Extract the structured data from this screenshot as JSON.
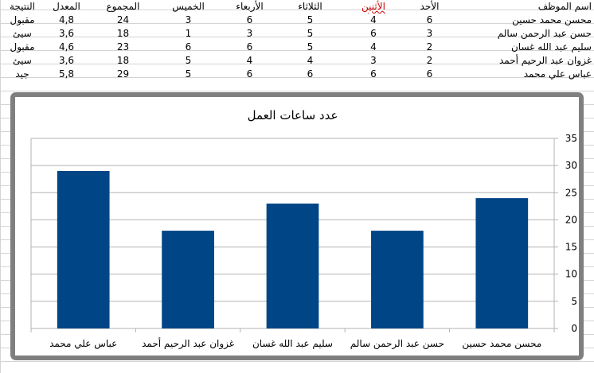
{
  "sheet": {
    "headers": {
      "name": "اسم الموظف",
      "sun": "الأحد",
      "mon": "الأثنين",
      "tue": "الثلاثاء",
      "wed": "الأربعاء",
      "thu": "الخميس",
      "total": "المجموع",
      "avg": "المعدل",
      "result": "النتيجة"
    },
    "rows": [
      {
        "name": "محسن محمد حسين",
        "sun": "6",
        "mon": "4",
        "tue": "5",
        "wed": "6",
        "thu": "3",
        "total": "24",
        "avg": "4,8",
        "result": "مقبول"
      },
      {
        "name": "حسن عبد الرحمن سالم",
        "sun": "3",
        "mon": "6",
        "tue": "5",
        "wed": "3",
        "thu": "1",
        "total": "18",
        "avg": "3,6",
        "result": "سيئ"
      },
      {
        "name": "سليم عبد الله غسان",
        "sun": "2",
        "mon": "4",
        "tue": "5",
        "wed": "6",
        "thu": "6",
        "total": "23",
        "avg": "4,6",
        "result": "مقبول"
      },
      {
        "name": "غزوان عبد الرحيم أحمد",
        "sun": "2",
        "mon": "3",
        "tue": "4",
        "wed": "4",
        "thu": "5",
        "total": "18",
        "avg": "3,6",
        "result": "سيئ"
      },
      {
        "name": "عباس علي محمد",
        "sun": "6",
        "mon": "6",
        "tue": "6",
        "wed": "6",
        "thu": "5",
        "total": "29",
        "avg": "5,8",
        "result": "جيد"
      }
    ]
  },
  "chart_data": {
    "type": "bar",
    "title": "عدد ساعات العمل",
    "categories": [
      "محسن محمد حسين",
      "حسن عبد الرحمن سالم",
      "سليم عبد الله غسان",
      "غزوان عبد الرحيم أحمد",
      "عباس علي محمد"
    ],
    "values": [
      24,
      18,
      23,
      18,
      29
    ],
    "ylim": [
      0,
      35
    ],
    "yticks": [
      0,
      5,
      10,
      15,
      20,
      25,
      30,
      35
    ],
    "xlabel": "",
    "ylabel": "",
    "axis_side": "right",
    "x_direction": "right-to-left",
    "grid": true,
    "legend": "none",
    "bar_color": "#004586",
    "grid_color": "#b3b3b3"
  }
}
